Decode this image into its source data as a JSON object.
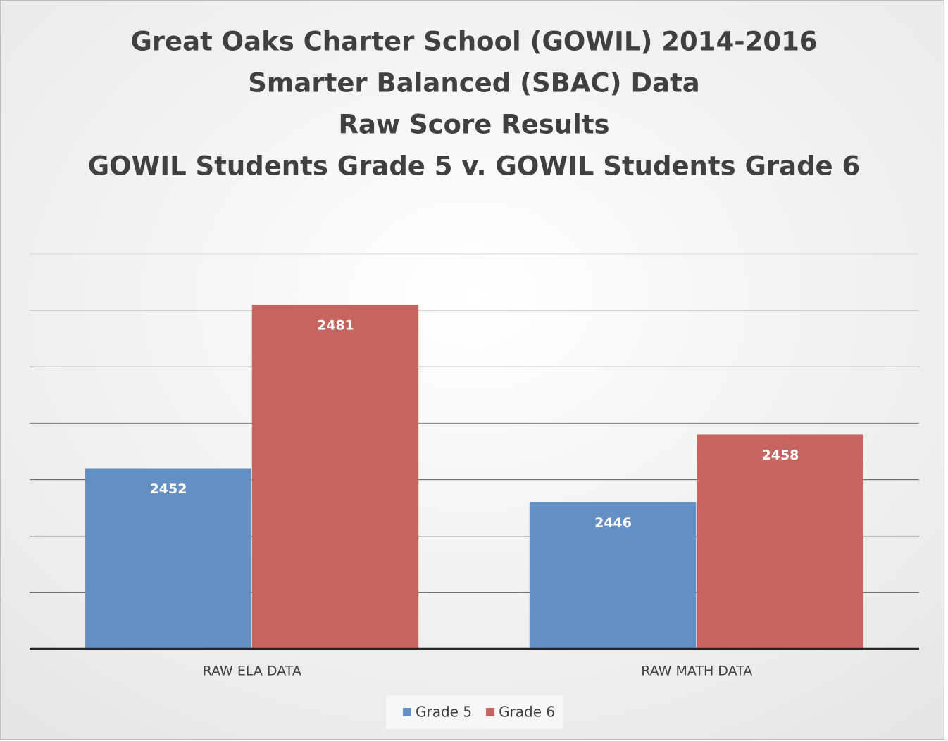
{
  "chart_data": {
    "type": "bar",
    "title": [
      "Great Oaks Charter School (GOWIL) 2014-2016",
      "Smarter Balanced (SBAC)  Data",
      "Raw Score Results",
      "GOWIL Students Grade 5 v. GOWIL Students Grade 6"
    ],
    "categories": [
      "RAW ELA DATA",
      "RAW MATH DATA"
    ],
    "series": [
      {
        "name": "Grade 5",
        "color": "#6590c4",
        "values": [
          2452,
          2446
        ]
      },
      {
        "name": "Grade 6",
        "color": "#c66460",
        "values": [
          2481,
          2458
        ]
      }
    ],
    "ylim": [
      2420,
      2490
    ],
    "yticks": [
      2420,
      2430,
      2440,
      2450,
      2460,
      2470,
      2480,
      2490
    ],
    "grid": true,
    "legend": "bottom"
  }
}
